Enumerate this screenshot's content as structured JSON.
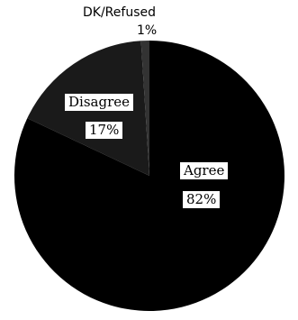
{
  "chart_data": {
    "type": "pie",
    "title": "",
    "slices": [
      {
        "label": "Agree",
        "value": 82,
        "value_label": "82%",
        "color": "#000000"
      },
      {
        "label": "Disagree",
        "value": 17,
        "value_label": "17%",
        "color": "#1a1a1a"
      },
      {
        "label": "DK/Refused",
        "value": 1,
        "value_label": "1%",
        "color": "#333333"
      }
    ],
    "start_angle_deg": 0,
    "direction": "clockwise",
    "legend": "none"
  }
}
